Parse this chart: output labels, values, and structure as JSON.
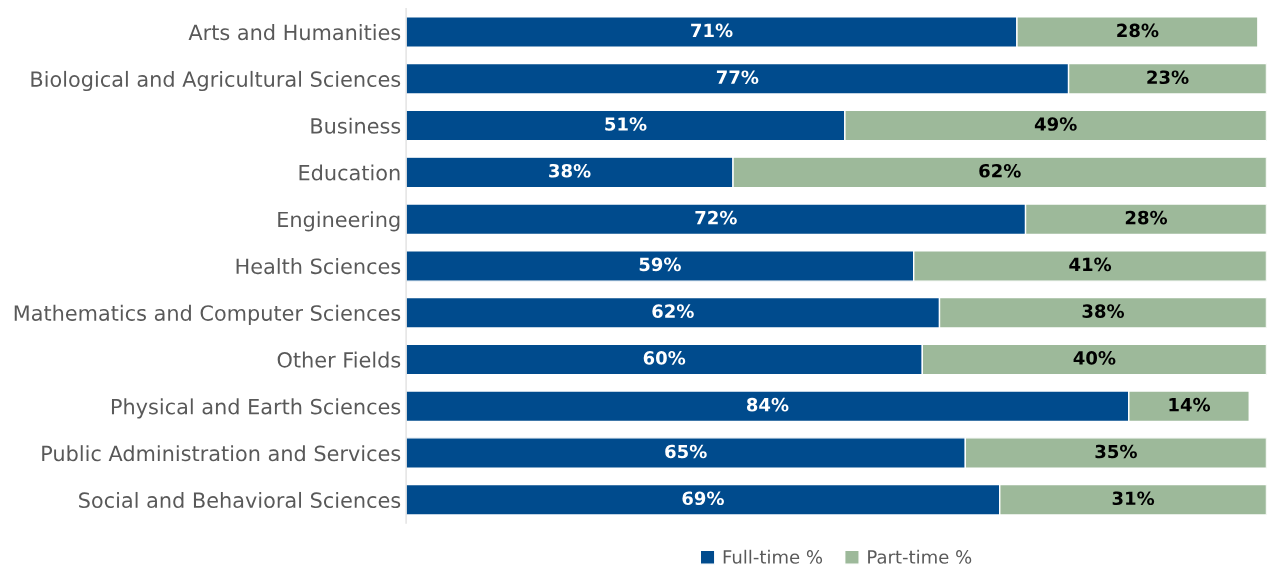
{
  "chart_data": {
    "type": "bar",
    "orientation": "horizontal",
    "stacked": true,
    "categories": [
      "Arts and Humanities",
      "Biological and Agricultural Sciences",
      "Business",
      "Education",
      "Engineering",
      "Health Sciences",
      "Mathematics and Computer Sciences",
      "Other Fields",
      "Physical and Earth Sciences",
      "Public Administration and Services",
      "Social and Behavioral Sciences"
    ],
    "series": [
      {
        "name": "Full-time %",
        "color": "#004b8d",
        "values": [
          71,
          77,
          51,
          38,
          72,
          59,
          62,
          60,
          84,
          65,
          69
        ],
        "value_labels": [
          "71%",
          "77%",
          "51%",
          "38%",
          "72%",
          "59%",
          "62%",
          "60%",
          "84%",
          "65%",
          "69%"
        ]
      },
      {
        "name": "Part-time %",
        "color": "#9db99a",
        "values": [
          28,
          23,
          49,
          62,
          28,
          41,
          38,
          40,
          14,
          35,
          31
        ],
        "value_labels": [
          "28%",
          "23%",
          "49%",
          "62%",
          "28%",
          "41%",
          "38%",
          "40%",
          "14%",
          "35%",
          "31%"
        ]
      }
    ],
    "xlim": [
      0,
      100
    ],
    "tick_labels": "y",
    "legend": "bottom",
    "grid": false
  }
}
